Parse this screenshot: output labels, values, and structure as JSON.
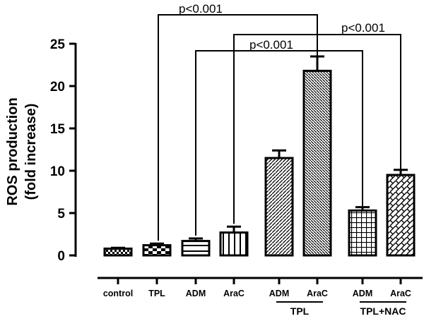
{
  "chart_data": {
    "type": "bar",
    "ylabel": [
      "ROS production",
      "(fold increase)"
    ],
    "xlabel": "",
    "ylim": [
      0,
      25
    ],
    "yticks": [
      0,
      5,
      10,
      15,
      20,
      25
    ],
    "categories": [
      "control",
      "TPL",
      "ADM",
      "AraC",
      "ADM",
      "AraC",
      "ADM",
      "AraC"
    ],
    "groups": [
      {
        "label": "TPL",
        "members": [
          4,
          5
        ]
      },
      {
        "label": "TPL+NAC",
        "members": [
          6,
          7
        ]
      }
    ],
    "values": [
      0.8,
      1.2,
      1.7,
      2.7,
      11.5,
      21.8,
      5.3,
      9.5
    ],
    "errors": [
      0.1,
      0.2,
      0.3,
      0.7,
      0.9,
      1.7,
      0.4,
      0.6
    ],
    "patterns": [
      "checker-small",
      "checker",
      "horizontal",
      "vertical",
      "diag-up",
      "diag-down",
      "grid",
      "brick"
    ],
    "significance": [
      {
        "from": 1,
        "to": 5,
        "label": "p<0.001"
      },
      {
        "from": 3,
        "to": 7,
        "label": "p<0.001"
      },
      {
        "from": 2,
        "to": 6,
        "label": "p<0.001"
      }
    ]
  }
}
